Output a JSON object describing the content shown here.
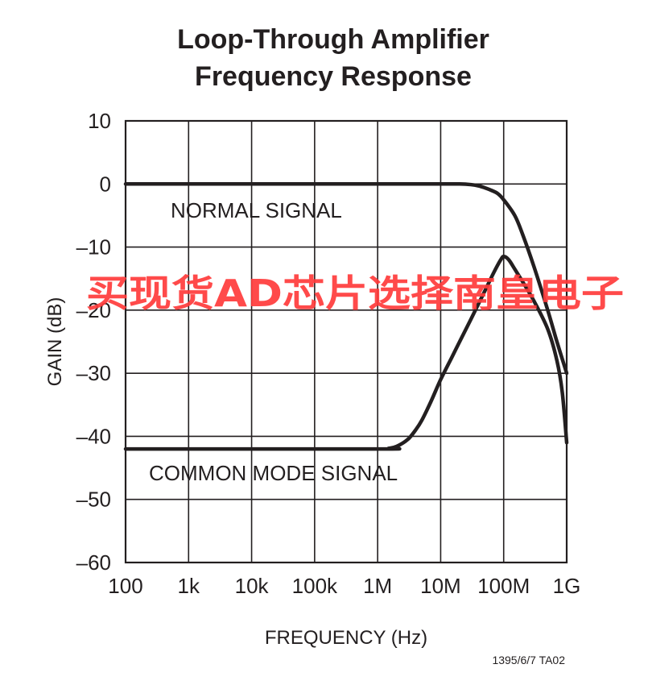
{
  "chart_data": {
    "type": "line",
    "title_lines": [
      "Loop-Through Amplifier",
      "Frequency Response"
    ],
    "xlabel": "FREQUENCY (Hz)",
    "ylabel": "GAIN (dB)",
    "x_scale": "log",
    "xlim": [
      100,
      1000000000
    ],
    "ylim": [
      -60,
      10
    ],
    "x_ticks": [
      {
        "value": 100,
        "label": "100"
      },
      {
        "value": 1000,
        "label": "1k"
      },
      {
        "value": 10000,
        "label": "10k"
      },
      {
        "value": 100000,
        "label": "100k"
      },
      {
        "value": 1000000,
        "label": "1M"
      },
      {
        "value": 10000000,
        "label": "10M"
      },
      {
        "value": 100000000,
        "label": "100M"
      },
      {
        "value": 1000000000,
        "label": "1G"
      }
    ],
    "y_ticks": [
      {
        "value": 10,
        "label": "10"
      },
      {
        "value": 0,
        "label": "0"
      },
      {
        "value": -10,
        "label": "–10"
      },
      {
        "value": -20,
        "label": "–20"
      },
      {
        "value": -30,
        "label": "–30"
      },
      {
        "value": -40,
        "label": "–40"
      },
      {
        "value": -50,
        "label": "–50"
      },
      {
        "value": -60,
        "label": "–60"
      }
    ],
    "grid": true,
    "series": [
      {
        "name": "NORMAL SIGNAL",
        "color": "#231f20",
        "x": [
          100,
          1000000,
          10000000,
          20000000,
          30000000,
          40000000,
          50000000,
          60000000,
          80000000,
          100000000,
          150000000,
          200000000,
          300000000,
          500000000,
          700000000,
          1000000000
        ],
        "y": [
          0,
          0,
          0,
          0,
          -0.1,
          -0.3,
          -0.6,
          -0.9,
          -1.5,
          -2.5,
          -5,
          -8,
          -13,
          -20,
          -25,
          -30
        ]
      },
      {
        "name": "COMMON MODE SIGNAL",
        "color": "#231f20",
        "x": [
          100,
          1000000,
          1500000,
          2000000,
          3000000,
          4000000,
          5000000,
          7000000,
          10000000,
          15000000,
          20000000,
          30000000,
          50000000,
          70000000,
          90000000,
          100000000,
          120000000,
          150000000,
          200000000,
          300000000,
          500000000,
          700000000,
          850000000,
          1000000000
        ],
        "y": [
          -42,
          -42,
          -41.9,
          -41.6,
          -40.5,
          -39,
          -37.5,
          -34.5,
          -31,
          -27.5,
          -25,
          -21.5,
          -17,
          -14,
          -12,
          -11.5,
          -12,
          -13.5,
          -15.5,
          -18.5,
          -23,
          -28,
          -33,
          -41
        ]
      }
    ],
    "annotations": {
      "normal": "NORMAL SIGNAL",
      "common": "COMMON MODE SIGNAL"
    },
    "figure_code": "1395/6/7 TA02",
    "watermark": "买现货AD芯片选择南皇电子"
  }
}
